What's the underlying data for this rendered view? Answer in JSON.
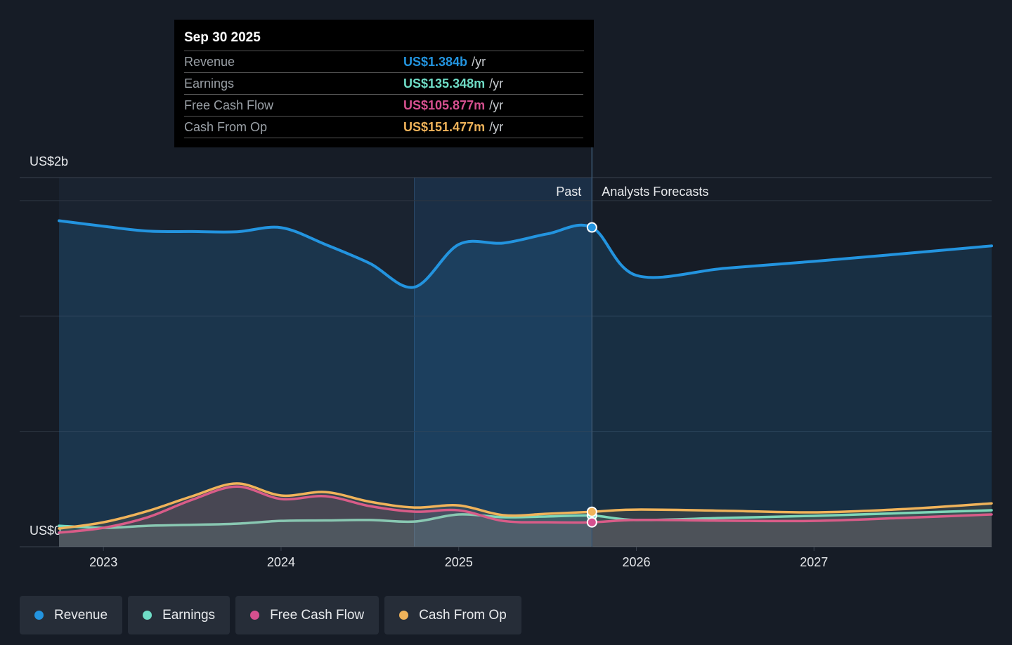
{
  "chart_data": {
    "type": "line",
    "x": [
      2022.75,
      2023.0,
      2023.25,
      2023.5,
      2023.75,
      2024.0,
      2024.25,
      2024.5,
      2024.75,
      2025.0,
      2025.25,
      2025.5,
      2025.75,
      2026.0,
      2026.5,
      2027.0,
      2027.5,
      2028.0
    ],
    "series": [
      {
        "name": "Revenue",
        "color": "#2394df",
        "values": [
          1.413,
          1.389,
          1.368,
          1.366,
          1.365,
          1.383,
          1.31,
          1.228,
          1.125,
          1.31,
          1.316,
          1.356,
          1.384,
          1.176,
          1.207,
          1.237,
          1.27,
          1.304
        ]
      },
      {
        "name": "Earnings",
        "color": "#6fdcc6",
        "values": [
          0.091,
          0.082,
          0.091,
          0.095,
          0.1,
          0.112,
          0.114,
          0.116,
          0.109,
          0.14,
          0.128,
          0.131,
          0.135348,
          0.116,
          0.125,
          0.134,
          0.146,
          0.158
        ]
      },
      {
        "name": "Free Cash Flow",
        "color": "#d6508f",
        "values": [
          0.061,
          0.082,
          0.128,
          0.204,
          0.261,
          0.207,
          0.219,
          0.176,
          0.152,
          0.158,
          0.112,
          0.106,
          0.105877,
          0.116,
          0.113,
          0.112,
          0.125,
          0.14
        ]
      },
      {
        "name": "Cash From Op",
        "color": "#f0b35a",
        "values": [
          0.079,
          0.106,
          0.155,
          0.219,
          0.274,
          0.222,
          0.237,
          0.195,
          0.17,
          0.179,
          0.137,
          0.143,
          0.151477,
          0.161,
          0.156,
          0.149,
          0.163,
          0.188
        ]
      }
    ],
    "xlim": [
      2022.75,
      2028.0
    ],
    "xticks": [
      2023,
      2024,
      2025,
      2026,
      2027
    ],
    "ylim": [
      0,
      1.6
    ],
    "yticks": [
      {
        "value": 0,
        "label": "US$0"
      },
      {
        "value": 1.6,
        "label": "US$2b"
      }
    ],
    "ygrid": [
      0.5,
      1.0,
      1.5
    ],
    "past_label": "Past",
    "forecast_label": "Analysts Forecasts",
    "divider_x": 2025.75,
    "highlight_start": 2024.75,
    "tooltip": {
      "date": "Sep 30 2025",
      "rows": [
        {
          "label": "Revenue",
          "value": "US$1.384b",
          "unit": "/yr"
        },
        {
          "label": "Earnings",
          "value": "US$135.348m",
          "unit": "/yr"
        },
        {
          "label": "Free Cash Flow",
          "value": "US$105.877m",
          "unit": "/yr"
        },
        {
          "label": "Cash From Op",
          "value": "US$151.477m",
          "unit": "/yr"
        }
      ]
    }
  }
}
